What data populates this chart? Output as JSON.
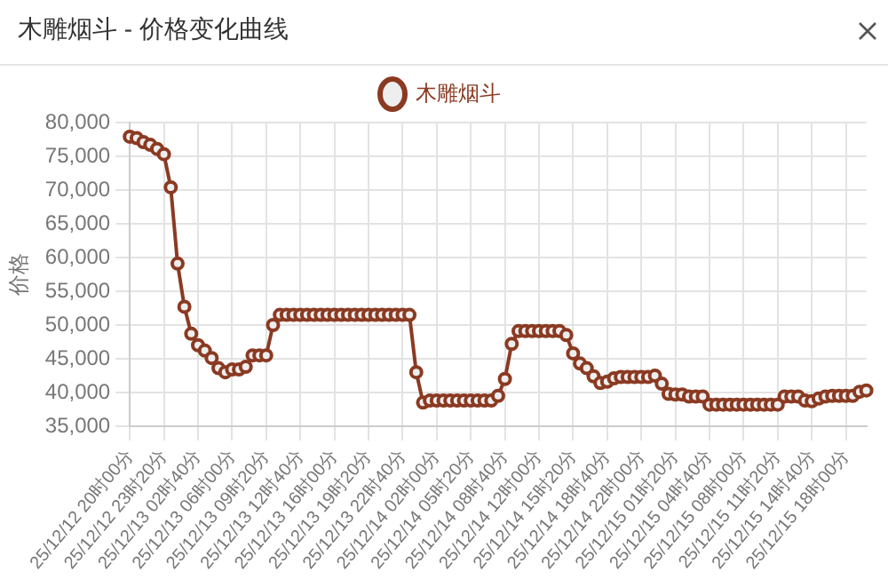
{
  "chart_data": {
    "type": "line",
    "title": "木雕烟斗 - 价格变化曲线",
    "ylabel": "价格",
    "legend": "top",
    "grid": true,
    "marker": "circle",
    "line_style": "solid",
    "ylim": [
      35000,
      80000
    ],
    "yticks": [
      {
        "value": 35000,
        "label": "35,000"
      },
      {
        "value": 40000,
        "label": "40,000"
      },
      {
        "value": 45000,
        "label": "45,000"
      },
      {
        "value": 50000,
        "label": "50,000"
      },
      {
        "value": 55000,
        "label": "55,000"
      },
      {
        "value": 60000,
        "label": "60,000"
      },
      {
        "value": 65000,
        "label": "65,000"
      },
      {
        "value": 70000,
        "label": "70,000"
      },
      {
        "value": 75000,
        "label": "75,000"
      },
      {
        "value": 80000,
        "label": "80,000"
      }
    ],
    "categories": [
      "25/12/12 20时00分",
      null,
      null,
      null,
      null,
      "25/12/12 23时20分",
      null,
      null,
      null,
      null,
      "25/12/13 02时40分",
      null,
      null,
      null,
      null,
      "25/12/13 06时00分",
      null,
      null,
      null,
      null,
      "25/12/13 09时20分",
      null,
      null,
      null,
      null,
      "25/12/13 12时40分",
      null,
      null,
      null,
      null,
      "25/12/13 16时00分",
      null,
      null,
      null,
      null,
      "25/12/13 19时20分",
      null,
      null,
      null,
      null,
      "25/12/13 22时40分",
      null,
      null,
      null,
      null,
      "25/12/14 02时00分",
      null,
      null,
      null,
      null,
      "25/12/14 05时20分",
      null,
      null,
      null,
      null,
      "25/12/14 08时40分",
      null,
      null,
      null,
      null,
      "25/12/14 12时00分",
      null,
      null,
      null,
      null,
      "25/12/14 15时20分",
      null,
      null,
      null,
      null,
      "25/12/14 18时40分",
      null,
      null,
      null,
      null,
      "25/12/14 22时00分",
      null,
      null,
      null,
      null,
      "25/12/15 01时20分",
      null,
      null,
      null,
      null,
      "25/12/15 04时40分",
      null,
      null,
      null,
      null,
      "25/12/15 08时00分",
      null,
      null,
      null,
      null,
      "25/12/15 11时20分",
      null,
      null,
      null,
      null,
      "25/12/15 14时40分",
      null,
      null,
      null,
      null,
      "25/12/15 18时00分",
      null,
      null,
      null
    ],
    "series": [
      {
        "name": "木雕烟斗",
        "color": "#8b3a22",
        "values": [
          77900,
          77700,
          77100,
          76700,
          76100,
          75300,
          70400,
          59100,
          52700,
          48700,
          47000,
          46200,
          45100,
          43600,
          43000,
          43400,
          43400,
          43800,
          45500,
          45500,
          45500,
          50000,
          51500,
          51500,
          51500,
          51500,
          51500,
          51500,
          51500,
          51500,
          51500,
          51500,
          51500,
          51500,
          51500,
          51500,
          51500,
          51500,
          51500,
          51500,
          51500,
          51500,
          43000,
          38500,
          38800,
          38800,
          38800,
          38800,
          38800,
          38800,
          38800,
          38800,
          38800,
          38800,
          39500,
          42000,
          47200,
          49100,
          49100,
          49100,
          49100,
          49100,
          49100,
          49100,
          48500,
          45800,
          44300,
          43600,
          42400,
          41400,
          41600,
          42100,
          42300,
          42300,
          42300,
          42300,
          42300,
          42500,
          41300,
          39800,
          39700,
          39700,
          39400,
          39400,
          39400,
          38200,
          38200,
          38200,
          38200,
          38200,
          38200,
          38200,
          38200,
          38200,
          38200,
          38200,
          39400,
          39400,
          39400,
          38800,
          38700,
          39100,
          39400,
          39500,
          39500,
          39500,
          39500,
          40100,
          40300
        ]
      }
    ]
  }
}
